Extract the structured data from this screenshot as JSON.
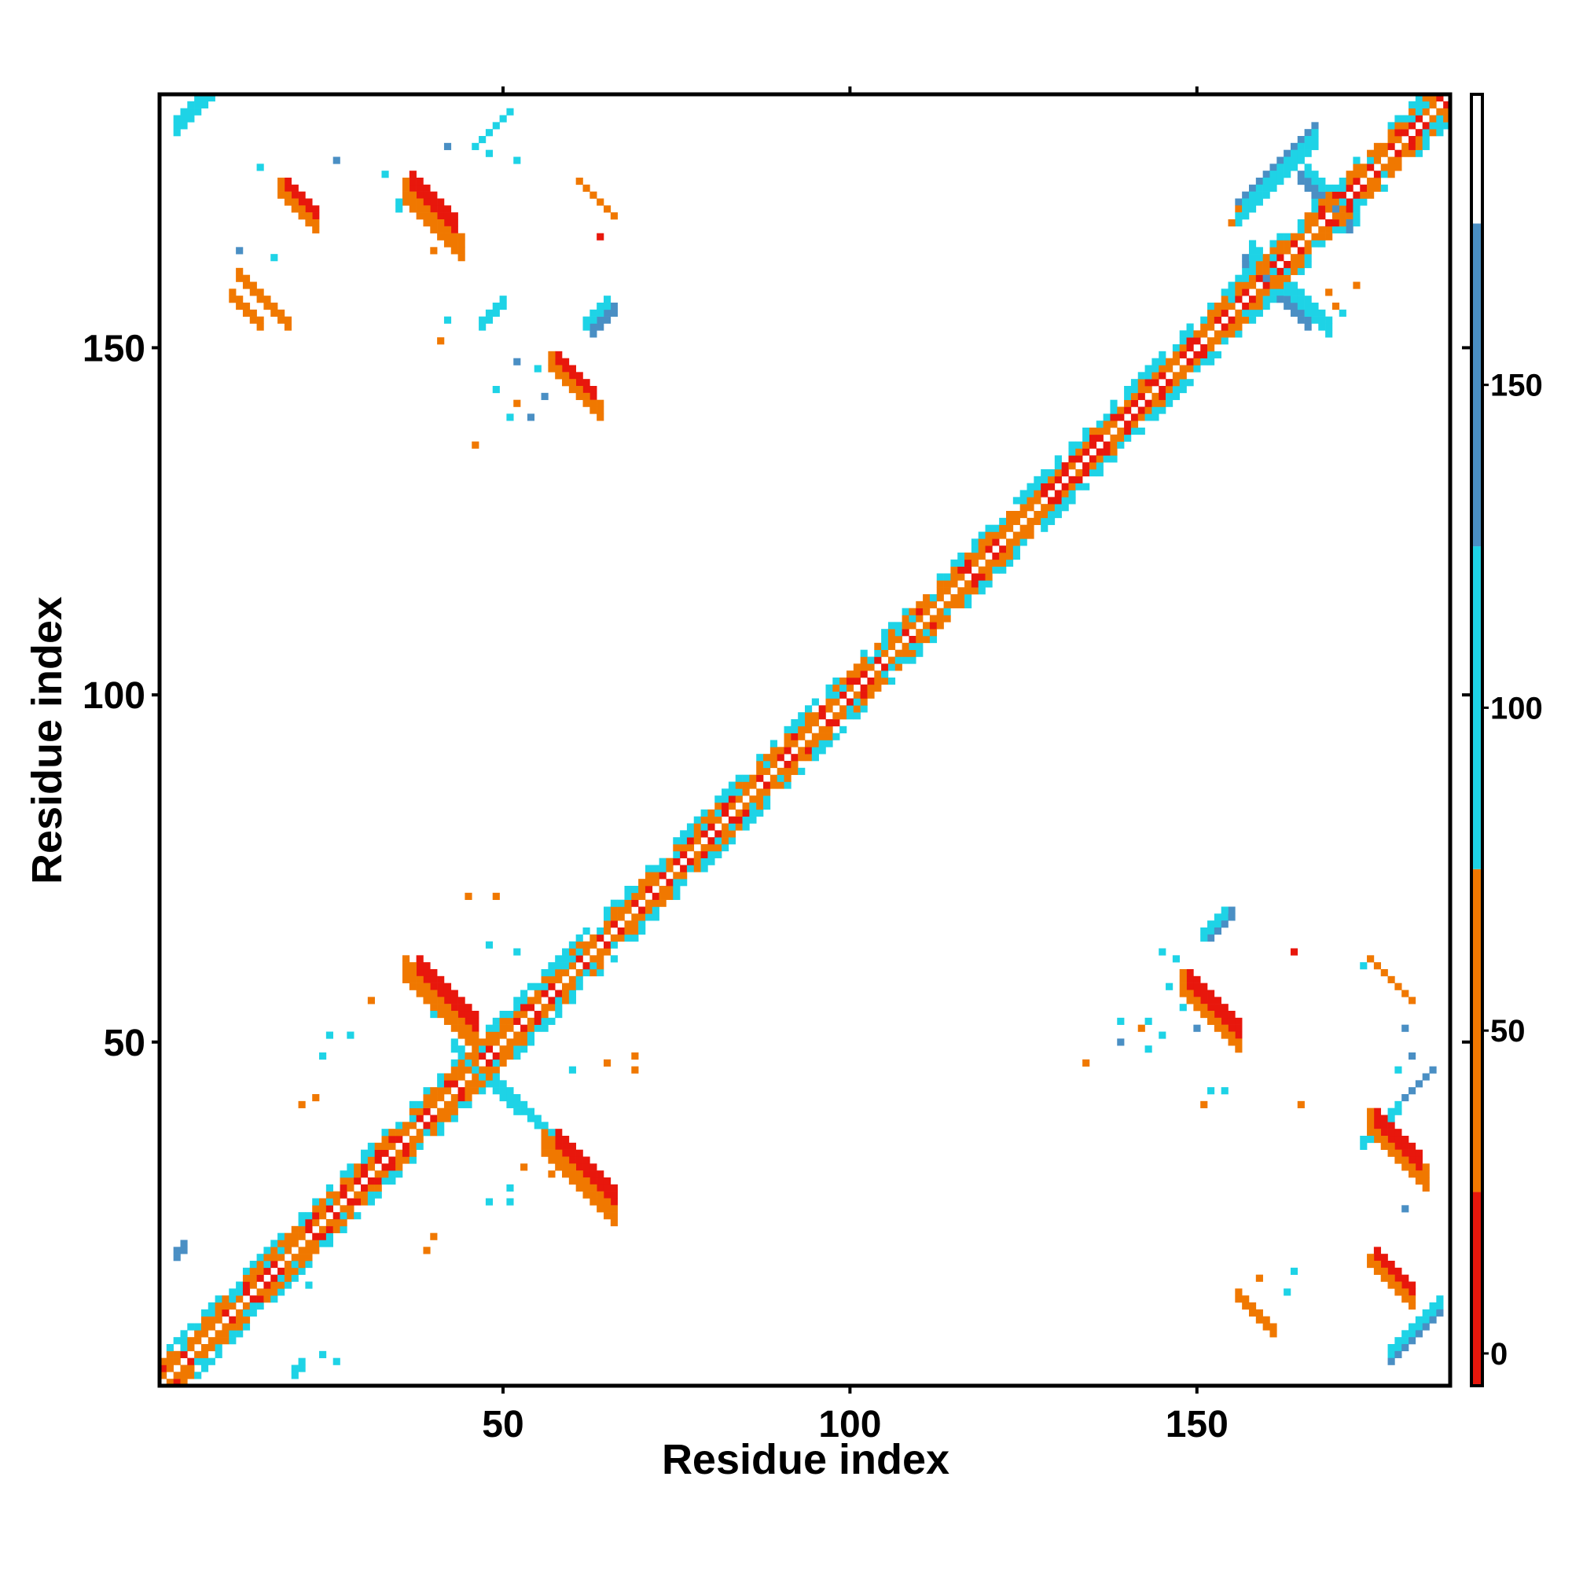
{
  "chart_data": {
    "type": "heatmap",
    "title": "",
    "xlabel": "Residue index",
    "ylabel": "Residue index",
    "xlim": [
      0.5,
      186.5
    ],
    "ylim": [
      0.5,
      186.5
    ],
    "x_ticks": [
      50,
      100,
      150
    ],
    "y_ticks": [
      50,
      100,
      150
    ],
    "tick_labels": {
      "x": [
        "50",
        "100",
        "150"
      ],
      "y": [
        "50",
        "100",
        "150"
      ]
    },
    "colorbar": {
      "range": [
        -5,
        195
      ],
      "ticks": [
        0,
        50,
        100,
        150
      ],
      "tick_labels": [
        "0",
        "50",
        "100",
        "150"
      ],
      "bands": [
        {
          "from": -5,
          "to": 25,
          "color": "#e8170c"
        },
        {
          "from": 25,
          "to": 75,
          "color": "#f07800"
        },
        {
          "from": 75,
          "to": 125,
          "color": "#1ed3e6"
        },
        {
          "from": 125,
          "to": 175,
          "color": "#4a8fc4"
        },
        {
          "from": 175,
          "to": 195,
          "color": "#ffffff"
        }
      ]
    },
    "diagonal": {
      "from": 1,
      "to": 186
    },
    "contacts": [
      {
        "i": 3,
        "j": 183,
        "length": 8,
        "direction": "parallel",
        "cls": "blue",
        "width": 2
      },
      {
        "i": 3,
        "j": 183,
        "length": 8,
        "direction": "parallel",
        "cls": "cyan",
        "width": 3
      },
      {
        "i": 19,
        "j": 173,
        "length": 5,
        "direction": "anti",
        "cls": "red",
        "width": 2
      },
      {
        "i": 18,
        "j": 172,
        "length": 6,
        "direction": "anti",
        "cls": "orange",
        "width": 3
      },
      {
        "i": 37,
        "j": 173,
        "length": 7,
        "direction": "anti",
        "cls": "red",
        "width": 3
      },
      {
        "i": 36,
        "j": 171,
        "length": 9,
        "direction": "anti",
        "cls": "orange",
        "width": 4
      },
      {
        "i": 35,
        "j": 171,
        "length": 4,
        "direction": "parallel",
        "cls": "cyan",
        "width": 2
      },
      {
        "i": 46,
        "j": 179,
        "length": 6,
        "direction": "parallel",
        "cls": "cyan",
        "width": 1
      },
      {
        "i": 61,
        "j": 174,
        "length": 6,
        "direction": "anti",
        "cls": "orange",
        "width": 1
      },
      {
        "i": 12,
        "j": 160,
        "length": 8,
        "direction": "anti",
        "cls": "orange",
        "width": 2
      },
      {
        "i": 11,
        "j": 157,
        "length": 5,
        "direction": "anti",
        "cls": "orange",
        "width": 2
      },
      {
        "i": 58,
        "j": 148,
        "length": 6,
        "direction": "anti",
        "cls": "red",
        "width": 2
      },
      {
        "i": 57,
        "j": 147,
        "length": 8,
        "direction": "anti",
        "cls": "orange",
        "width": 3
      },
      {
        "i": 63,
        "j": 153,
        "length": 4,
        "direction": "parallel",
        "cls": "blue",
        "width": 2
      },
      {
        "i": 62,
        "j": 154,
        "length": 4,
        "direction": "parallel",
        "cls": "cyan",
        "width": 2
      },
      {
        "i": 38,
        "j": 60,
        "length": 9,
        "direction": "anti",
        "cls": "red",
        "width": 3
      },
      {
        "i": 36,
        "j": 59,
        "length": 11,
        "direction": "anti",
        "cls": "orange",
        "width": 4
      },
      {
        "i": 58,
        "j": 35,
        "length": 9,
        "direction": "anti",
        "cls": "red",
        "width": 3
      },
      {
        "i": 56,
        "j": 34,
        "length": 11,
        "direction": "anti",
        "cls": "orange",
        "width": 4
      },
      {
        "i": 43,
        "j": 49,
        "length": 10,
        "direction": "anti",
        "cls": "cyan",
        "width": 2
      },
      {
        "i": 49,
        "j": 44,
        "length": 10,
        "direction": "anti",
        "cls": "cyan",
        "width": 2
      },
      {
        "i": 56,
        "j": 60,
        "length": 6,
        "direction": "parallel",
        "cls": "cyan",
        "width": 2
      },
      {
        "i": 47,
        "j": 154,
        "length": 4,
        "direction": "parallel",
        "cls": "cyan",
        "width": 2
      },
      {
        "i": 149,
        "j": 58,
        "length": 8,
        "direction": "anti",
        "cls": "red",
        "width": 3
      },
      {
        "i": 148,
        "j": 57,
        "length": 9,
        "direction": "anti",
        "cls": "orange",
        "width": 4
      },
      {
        "i": 152,
        "j": 66,
        "length": 4,
        "direction": "parallel",
        "cls": "blue",
        "width": 2
      },
      {
        "i": 151,
        "j": 66,
        "length": 4,
        "direction": "parallel",
        "cls": "cyan",
        "width": 2
      },
      {
        "i": 176,
        "j": 38,
        "length": 7,
        "direction": "anti",
        "cls": "red",
        "width": 3
      },
      {
        "i": 175,
        "j": 37,
        "length": 9,
        "direction": "anti",
        "cls": "orange",
        "width": 4
      },
      {
        "i": 174,
        "j": 36,
        "length": 6,
        "direction": "parallel",
        "cls": "cyan",
        "width": 2
      },
      {
        "i": 180,
        "j": 42,
        "length": 5,
        "direction": "parallel",
        "cls": "blue",
        "width": 1
      },
      {
        "i": 176,
        "j": 19,
        "length": 6,
        "direction": "anti",
        "cls": "red",
        "width": 2
      },
      {
        "i": 175,
        "j": 18,
        "length": 7,
        "direction": "anti",
        "cls": "orange",
        "width": 2
      },
      {
        "i": 156,
        "j": 13,
        "length": 6,
        "direction": "anti",
        "cls": "orange",
        "width": 2
      },
      {
        "i": 157,
        "j": 12,
        "length": 5,
        "direction": "anti",
        "cls": "orange",
        "width": 1
      },
      {
        "i": 178,
        "j": 5,
        "length": 8,
        "direction": "parallel",
        "cls": "blue",
        "width": 2
      },
      {
        "i": 178,
        "j": 6,
        "length": 8,
        "direction": "parallel",
        "cls": "cyan",
        "width": 2
      },
      {
        "i": 175,
        "j": 62,
        "length": 7,
        "direction": "anti",
        "cls": "orange",
        "width": 1
      },
      {
        "i": 157,
        "j": 162,
        "length": 10,
        "direction": "anti",
        "cls": "blue",
        "width": 2
      },
      {
        "i": 158,
        "j": 163,
        "length": 12,
        "direction": "anti",
        "cls": "cyan",
        "width": 3
      },
      {
        "i": 156,
        "j": 171,
        "length": 12,
        "direction": "parallel",
        "cls": "blue",
        "width": 2
      },
      {
        "i": 156,
        "j": 170,
        "length": 12,
        "direction": "parallel",
        "cls": "cyan",
        "width": 3
      },
      {
        "i": 165,
        "j": 174,
        "length": 8,
        "direction": "anti",
        "cls": "blue",
        "width": 2
      },
      {
        "i": 166,
        "j": 175,
        "length": 8,
        "direction": "anti",
        "cls": "cyan",
        "width": 2
      },
      {
        "i": 3,
        "j": 20,
        "length": 2,
        "direction": "parallel",
        "cls": "blue",
        "width": 2
      },
      {
        "i": 20,
        "j": 3,
        "length": 2,
        "direction": "parallel",
        "cls": "cyan",
        "width": 2
      }
    ],
    "scatter": [
      {
        "i": 15,
        "j": 176,
        "cls": "cyan"
      },
      {
        "i": 26,
        "j": 177,
        "cls": "blue"
      },
      {
        "i": 33,
        "j": 175,
        "cls": "cyan"
      },
      {
        "i": 42,
        "j": 179,
        "cls": "blue"
      },
      {
        "i": 48,
        "j": 178,
        "cls": "cyan"
      },
      {
        "i": 52,
        "j": 177,
        "cls": "cyan"
      },
      {
        "i": 12,
        "j": 164,
        "cls": "blue"
      },
      {
        "i": 17,
        "j": 163,
        "cls": "cyan"
      },
      {
        "i": 40,
        "j": 164,
        "cls": "orange"
      },
      {
        "i": 64,
        "j": 166,
        "cls": "red"
      },
      {
        "i": 42,
        "j": 154,
        "cls": "cyan"
      },
      {
        "i": 41,
        "j": 151,
        "cls": "orange"
      },
      {
        "i": 52,
        "j": 148,
        "cls": "blue"
      },
      {
        "i": 55,
        "j": 147,
        "cls": "cyan"
      },
      {
        "i": 49,
        "j": 144,
        "cls": "cyan"
      },
      {
        "i": 52,
        "j": 142,
        "cls": "orange"
      },
      {
        "i": 56,
        "j": 143,
        "cls": "blue"
      },
      {
        "i": 51,
        "j": 140,
        "cls": "cyan"
      },
      {
        "i": 54,
        "j": 140,
        "cls": "blue"
      },
      {
        "i": 46,
        "j": 136,
        "cls": "orange"
      },
      {
        "i": 63,
        "j": 144,
        "cls": "cyan"
      },
      {
        "i": 45,
        "j": 71,
        "cls": "orange"
      },
      {
        "i": 49,
        "j": 71,
        "cls": "orange"
      },
      {
        "i": 48,
        "j": 64,
        "cls": "cyan"
      },
      {
        "i": 52,
        "j": 63,
        "cls": "cyan"
      },
      {
        "i": 31,
        "j": 56,
        "cls": "orange"
      },
      {
        "i": 40,
        "j": 54,
        "cls": "cyan"
      },
      {
        "i": 43,
        "j": 53,
        "cls": "cyan"
      },
      {
        "i": 25,
        "j": 51,
        "cls": "cyan"
      },
      {
        "i": 28,
        "j": 51,
        "cls": "cyan"
      },
      {
        "i": 24,
        "j": 48,
        "cls": "cyan"
      },
      {
        "i": 21,
        "j": 41,
        "cls": "orange"
      },
      {
        "i": 23,
        "j": 42,
        "cls": "orange"
      },
      {
        "i": 60,
        "j": 46,
        "cls": "cyan"
      },
      {
        "i": 65,
        "j": 47,
        "cls": "orange"
      },
      {
        "i": 69,
        "j": 48,
        "cls": "orange"
      },
      {
        "i": 69,
        "j": 46,
        "cls": "orange"
      },
      {
        "i": 55,
        "j": 39,
        "cls": "cyan"
      },
      {
        "i": 58,
        "j": 34,
        "cls": "orange"
      },
      {
        "i": 53,
        "j": 32,
        "cls": "orange"
      },
      {
        "i": 57,
        "j": 31,
        "cls": "orange"
      },
      {
        "i": 48,
        "j": 27,
        "cls": "cyan"
      },
      {
        "i": 51,
        "j": 27,
        "cls": "cyan"
      },
      {
        "i": 51,
        "j": 29,
        "cls": "cyan"
      },
      {
        "i": 40,
        "j": 22,
        "cls": "orange"
      },
      {
        "i": 39,
        "j": 20,
        "cls": "orange"
      },
      {
        "i": 22,
        "j": 15,
        "cls": "cyan"
      },
      {
        "i": 24,
        "j": 5,
        "cls": "cyan"
      },
      {
        "i": 26,
        "j": 4,
        "cls": "cyan"
      },
      {
        "i": 145,
        "j": 63,
        "cls": "cyan"
      },
      {
        "i": 147,
        "j": 62,
        "cls": "cyan"
      },
      {
        "i": 146,
        "j": 58,
        "cls": "cyan"
      },
      {
        "i": 148,
        "j": 58,
        "cls": "cyan"
      },
      {
        "i": 150,
        "j": 55,
        "cls": "blue"
      },
      {
        "i": 148,
        "j": 55,
        "cls": "cyan"
      },
      {
        "i": 143,
        "j": 53,
        "cls": "cyan"
      },
      {
        "i": 139,
        "j": 53,
        "cls": "cyan"
      },
      {
        "i": 142,
        "j": 52,
        "cls": "orange"
      },
      {
        "i": 145,
        "j": 51,
        "cls": "cyan"
      },
      {
        "i": 150,
        "j": 52,
        "cls": "blue"
      },
      {
        "i": 139,
        "j": 50,
        "cls": "blue"
      },
      {
        "i": 143,
        "j": 49,
        "cls": "cyan"
      },
      {
        "i": 134,
        "j": 47,
        "cls": "orange"
      },
      {
        "i": 152,
        "j": 43,
        "cls": "cyan"
      },
      {
        "i": 154,
        "j": 43,
        "cls": "cyan"
      },
      {
        "i": 151,
        "j": 41,
        "cls": "orange"
      },
      {
        "i": 165,
        "j": 41,
        "cls": "orange"
      },
      {
        "i": 164,
        "j": 63,
        "cls": "red"
      },
      {
        "i": 174,
        "j": 61,
        "cls": "cyan"
      },
      {
        "i": 180,
        "j": 52,
        "cls": "blue"
      },
      {
        "i": 181,
        "j": 48,
        "cls": "blue"
      },
      {
        "i": 179,
        "j": 46,
        "cls": "cyan"
      },
      {
        "i": 180,
        "j": 26,
        "cls": "blue"
      },
      {
        "i": 178,
        "j": 15,
        "cls": "cyan"
      },
      {
        "i": 164,
        "j": 17,
        "cls": "cyan"
      },
      {
        "i": 163,
        "j": 14,
        "cls": "cyan"
      },
      {
        "i": 159,
        "j": 16,
        "cls": "orange"
      },
      {
        "i": 156,
        "j": 170,
        "cls": "orange"
      },
      {
        "i": 155,
        "j": 168,
        "cls": "orange"
      },
      {
        "i": 171,
        "j": 155,
        "cls": "cyan"
      },
      {
        "i": 170,
        "j": 156,
        "cls": "orange"
      },
      {
        "i": 173,
        "j": 159,
        "cls": "orange"
      },
      {
        "i": 169,
        "j": 158,
        "cls": "orange"
      }
    ]
  }
}
